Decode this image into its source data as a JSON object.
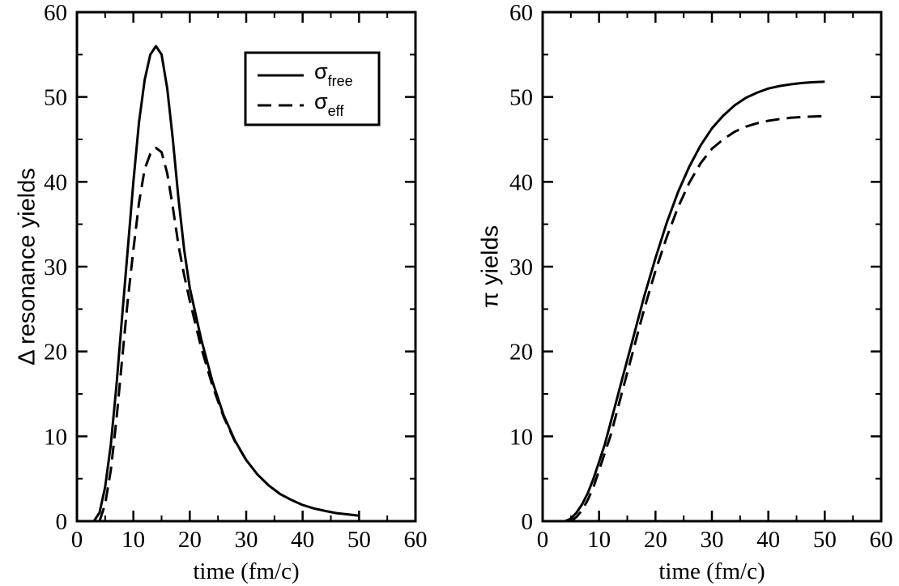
{
  "chart_data": [
    {
      "type": "line",
      "xlabel": "time (fm/c)",
      "ylabel": "Δ resonance yields",
      "xlim": [
        0,
        60
      ],
      "ylim": [
        0,
        60
      ],
      "xticks": [
        "0",
        "10",
        "20",
        "30",
        "40",
        "50",
        "60"
      ],
      "yticks": [
        "0",
        "10",
        "20",
        "30",
        "40",
        "50",
        "60"
      ],
      "grid": false,
      "legend_position": "top-right",
      "series": [
        {
          "name": "σfree",
          "legend_symbol": "σ",
          "legend_subscript": "free",
          "style": "solid",
          "x": [
            3,
            4,
            5,
            6,
            7,
            8,
            9,
            10,
            11,
            12,
            13,
            14,
            15,
            16,
            17,
            18,
            19,
            20,
            22,
            24,
            26,
            28,
            30,
            32,
            34,
            36,
            38,
            40,
            42,
            44,
            46,
            48,
            50
          ],
          "y": [
            0,
            1,
            4,
            9,
            16,
            24,
            32,
            40,
            47,
            52,
            55,
            56,
            55,
            51,
            45,
            38,
            32,
            27.5,
            21.5,
            16.5,
            12.5,
            9.5,
            7.2,
            5.5,
            4.2,
            3.2,
            2.5,
            1.9,
            1.5,
            1.2,
            0.95,
            0.8,
            0.65
          ]
        },
        {
          "name": "σeff",
          "legend_symbol": "σ",
          "legend_subscript": "eff",
          "style": "dashed",
          "x": [
            4,
            5,
            6,
            7,
            8,
            9,
            10,
            11,
            12,
            13,
            14,
            15,
            16,
            17,
            18,
            19,
            20,
            22,
            24,
            26,
            28,
            30
          ],
          "y": [
            0,
            2,
            6,
            12,
            19,
            26,
            32,
            37.5,
            41.5,
            43.3,
            44,
            43.5,
            41,
            37,
            32.5,
            29,
            26,
            20.5,
            16,
            12.3,
            9.4,
            7.2
          ]
        }
      ]
    },
    {
      "type": "line",
      "xlabel": "time (fm/c)",
      "ylabel": "π  yields",
      "xlim": [
        0,
        60
      ],
      "ylim": [
        0,
        60
      ],
      "xticks": [
        "0",
        "10",
        "20",
        "30",
        "40",
        "50",
        "60"
      ],
      "yticks": [
        "0",
        "10",
        "20",
        "30",
        "40",
        "50",
        "60"
      ],
      "grid": false,
      "series": [
        {
          "name": "σfree",
          "style": "solid",
          "x": [
            4,
            5,
            6,
            7,
            8,
            9,
            10,
            11,
            12,
            13,
            14,
            15,
            16,
            17,
            18,
            20,
            22,
            24,
            26,
            28,
            30,
            32,
            34,
            36,
            38,
            40,
            42,
            44,
            46,
            48,
            50
          ],
          "y": [
            0,
            0.3,
            1,
            2,
            3.3,
            5,
            7,
            9,
            11.5,
            14,
            16.5,
            19,
            21.5,
            24,
            26.5,
            31,
            35.2,
            38.8,
            41.8,
            44.3,
            46.3,
            47.8,
            49,
            49.9,
            50.5,
            51,
            51.3,
            51.5,
            51.65,
            51.75,
            51.8
          ]
        },
        {
          "name": "σeff",
          "style": "dashed",
          "x": [
            5,
            6,
            7,
            8,
            9,
            10,
            11,
            12,
            13,
            14,
            15,
            16,
            17,
            18,
            20,
            22,
            24,
            26,
            28,
            30,
            32,
            34,
            36,
            38,
            40,
            42,
            44,
            46,
            48,
            50
          ],
          "y": [
            0,
            0.5,
            1.3,
            2.5,
            4,
            6,
            8,
            10,
            12.5,
            15,
            17.5,
            20,
            22.5,
            25,
            29.5,
            33.5,
            37,
            39.9,
            42.2,
            43.9,
            45,
            45.9,
            46.5,
            46.9,
            47.2,
            47.4,
            47.55,
            47.65,
            47.7,
            47.75
          ]
        }
      ]
    }
  ]
}
